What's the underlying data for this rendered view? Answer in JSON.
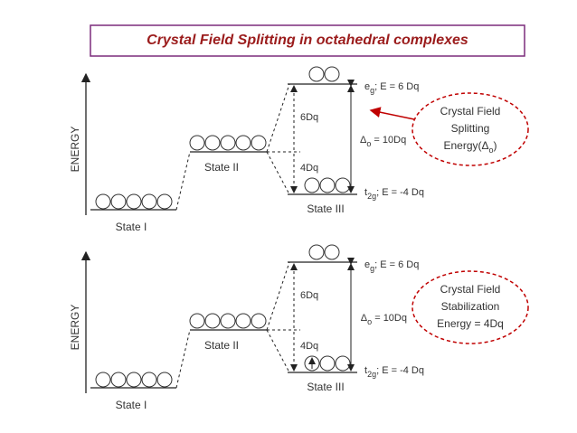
{
  "title": "Crystal Field Splitting in octahedral complexes",
  "diagrams": [
    {
      "axis_label": "ENERGY",
      "states": [
        "State I",
        "State II",
        "State III"
      ],
      "upper_gap": "6Dq",
      "lower_gap": "4Dq",
      "delta": {
        "symbol": "Δ",
        "sub": "o",
        "text": " = 10Dq"
      },
      "eg": {
        "symbol": "e",
        "sub": "g",
        "text": "; E = 6 Dq"
      },
      "t2g": {
        "symbol": "t",
        "sub": "2g",
        "text": "; E = -4 Dq"
      },
      "callout": {
        "lines": [
          "Crystal Field",
          "Splitting"
        ],
        "last": {
          "pre": "Energy(Δ",
          "sub": "o",
          "post": ")"
        }
      }
    },
    {
      "axis_label": "ENERGY",
      "states": [
        "State I",
        "State II",
        "State III"
      ],
      "upper_gap": "6Dq",
      "lower_gap": "4Dq",
      "delta": {
        "symbol": "Δ",
        "sub": "o",
        "text": " = 10Dq"
      },
      "eg": {
        "symbol": "e",
        "sub": "g",
        "text": "; E = 6 Dq"
      },
      "t2g": {
        "symbol": "t",
        "sub": "2g",
        "text": "; E = -4 Dq"
      },
      "callout": {
        "lines": [
          "Crystal Field",
          "Stabilization",
          "Energy = 4Dq"
        ]
      }
    }
  ]
}
